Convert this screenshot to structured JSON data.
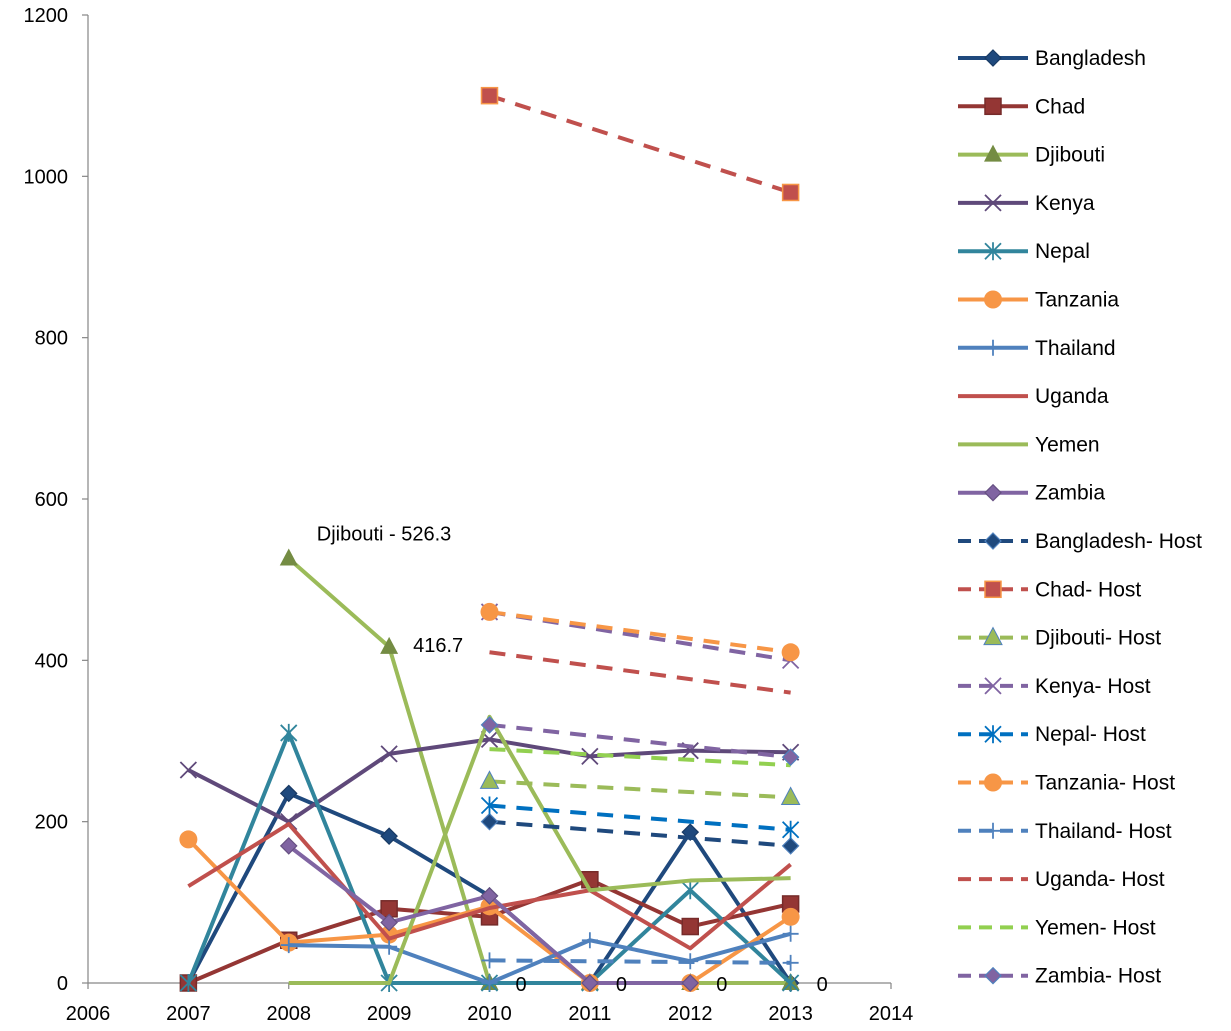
{
  "chart_data": {
    "type": "line",
    "title": "",
    "xlabel": "",
    "ylabel": "",
    "xlim": [
      2006,
      2014
    ],
    "ylim": [
      0,
      1200
    ],
    "xticks": [
      2006,
      2007,
      2008,
      2009,
      2010,
      2011,
      2012,
      2013,
      2014
    ],
    "yticks": [
      0,
      200,
      400,
      600,
      800,
      1000,
      1200
    ],
    "grid": false,
    "legend_position": "right",
    "series": [
      {
        "name": "Bangladesh",
        "color": "#1F497D",
        "marker": "diamond",
        "dash": "solid",
        "points": [
          [
            2007,
            0
          ],
          [
            2008,
            235
          ],
          [
            2009,
            182
          ],
          [
            2010,
            108
          ],
          [
            2011,
            0
          ],
          [
            2012,
            187
          ],
          [
            2013,
            0
          ]
        ]
      },
      {
        "name": "Chad",
        "color": "#943634",
        "marker": "square",
        "dash": "solid",
        "points": [
          [
            2007,
            0
          ],
          [
            2008,
            53
          ],
          [
            2009,
            92
          ],
          [
            2010,
            82
          ],
          [
            2011,
            128
          ],
          [
            2012,
            70
          ],
          [
            2013,
            98
          ]
        ]
      },
      {
        "name": "Djibouti",
        "color": "#9BBB59",
        "marker": "triangle",
        "dash": "solid",
        "points": [
          [
            2008,
            526.3
          ],
          [
            2009,
            416.7
          ],
          [
            2010,
            0
          ],
          [
            2011,
            0
          ],
          [
            2012,
            0
          ],
          [
            2013,
            0
          ]
        ]
      },
      {
        "name": "Kenya",
        "color": "#5F497A",
        "marker": "x",
        "dash": "solid",
        "points": [
          [
            2007,
            264
          ],
          [
            2008,
            200
          ],
          [
            2009,
            284
          ],
          [
            2010,
            302
          ],
          [
            2011,
            281
          ],
          [
            2012,
            288
          ],
          [
            2013,
            286
          ]
        ]
      },
      {
        "name": "Nepal",
        "color": "#31859C",
        "marker": "star",
        "dash": "solid",
        "points": [
          [
            2007,
            0
          ],
          [
            2008,
            310
          ],
          [
            2009,
            0
          ],
          [
            2010,
            0
          ],
          [
            2011,
            0
          ],
          [
            2012,
            115
          ],
          [
            2013,
            0
          ]
        ]
      },
      {
        "name": "Tanzania",
        "color": "#F79646",
        "marker": "circle",
        "dash": "solid",
        "points": [
          [
            2007,
            178
          ],
          [
            2008,
            50
          ],
          [
            2009,
            60
          ],
          [
            2010,
            95
          ],
          [
            2011,
            0
          ],
          [
            2012,
            0
          ],
          [
            2013,
            82
          ]
        ]
      },
      {
        "name": "Thailand",
        "color": "#4F81BD",
        "marker": "plus",
        "dash": "solid",
        "points": [
          [
            2008,
            47
          ],
          [
            2009,
            45
          ],
          [
            2010,
            0
          ],
          [
            2011,
            53
          ],
          [
            2012,
            27
          ],
          [
            2013,
            61
          ]
        ]
      },
      {
        "name": "Uganda",
        "color": "#C0504D",
        "marker": "none",
        "dash": "solid",
        "points": [
          [
            2007,
            120
          ],
          [
            2008,
            197
          ],
          [
            2009,
            55
          ],
          [
            2010,
            93
          ],
          [
            2011,
            115
          ],
          [
            2012,
            43
          ],
          [
            2013,
            147
          ]
        ]
      },
      {
        "name": "Yemen",
        "color": "#9BBB59",
        "marker": "none",
        "dash": "solid",
        "points": [
          [
            2008,
            0
          ],
          [
            2009,
            0
          ],
          [
            2010,
            330
          ],
          [
            2011,
            115
          ],
          [
            2012,
            127
          ],
          [
            2013,
            130
          ]
        ]
      },
      {
        "name": "Zambia",
        "color": "#8064A2",
        "marker": "diamond",
        "dash": "solid",
        "points": [
          [
            2008,
            170
          ],
          [
            2009,
            75
          ],
          [
            2010,
            108
          ],
          [
            2011,
            0
          ],
          [
            2012,
            0
          ]
        ]
      },
      {
        "name": "Bangladesh- Host",
        "color": "#1F497D",
        "marker": "diamond",
        "dash": "dashed",
        "points": [
          [
            2010,
            200
          ],
          [
            2013,
            170
          ]
        ]
      },
      {
        "name": "Chad- Host",
        "color": "#C0504D",
        "marker": "square",
        "dash": "dashed",
        "points": [
          [
            2010,
            1100
          ],
          [
            2013,
            980
          ]
        ]
      },
      {
        "name": "Djibouti- Host",
        "color": "#9BBB59",
        "marker": "triangle",
        "dash": "dashed",
        "points": [
          [
            2010,
            250
          ],
          [
            2013,
            230
          ]
        ]
      },
      {
        "name": "Kenya- Host",
        "color": "#8064A2",
        "marker": "x",
        "dash": "dashed",
        "points": [
          [
            2010,
            460
          ],
          [
            2013,
            400
          ]
        ]
      },
      {
        "name": "Nepal- Host",
        "color": "#0070C0",
        "marker": "star",
        "dash": "dashed",
        "points": [
          [
            2010,
            220
          ],
          [
            2013,
            190
          ]
        ]
      },
      {
        "name": "Tanzania- Host",
        "color": "#F79646",
        "marker": "circle",
        "dash": "dashed",
        "points": [
          [
            2010,
            460
          ],
          [
            2013,
            410
          ]
        ]
      },
      {
        "name": "Thailand- Host",
        "color": "#4F81BD",
        "marker": "plus",
        "dash": "dashed",
        "points": [
          [
            2010,
            28
          ],
          [
            2013,
            25
          ]
        ]
      },
      {
        "name": "Uganda- Host",
        "color": "#C0504D",
        "marker": "none",
        "dash": "dashed",
        "points": [
          [
            2010,
            410
          ],
          [
            2013,
            360
          ]
        ]
      },
      {
        "name": "Yemen- Host",
        "color": "#92D050",
        "marker": "none",
        "dash": "dashed",
        "points": [
          [
            2010,
            290
          ],
          [
            2013,
            270
          ]
        ]
      },
      {
        "name": "Zambia- Host",
        "color": "#8064A2",
        "marker": "diamond",
        "dash": "dashed",
        "points": [
          [
            2010,
            320
          ],
          [
            2013,
            280
          ]
        ]
      }
    ],
    "annotations": [
      {
        "text": "Djibouti - 526.3",
        "x": 2008,
        "y": 526.3
      },
      {
        "text": "416.7",
        "x": 2009,
        "y": 416.7
      },
      {
        "text": "0",
        "x": 2010,
        "y": 0
      },
      {
        "text": "0",
        "x": 2011,
        "y": 0
      },
      {
        "text": "0",
        "x": 2012,
        "y": 0
      },
      {
        "text": "0",
        "x": 2013,
        "y": 0
      }
    ]
  }
}
